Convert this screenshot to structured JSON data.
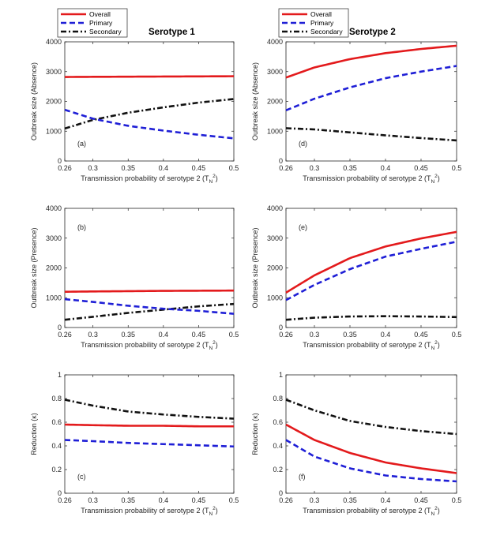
{
  "figure": {
    "column_titles": [
      "Serotype 1",
      "Serotype 2"
    ]
  },
  "chart_data": [
    {
      "panel": "(a)",
      "type": "line",
      "title": "Serotype 1",
      "xlabel": "Transmission probability of serotype 2 (T_N^2)",
      "ylabel": "Outbreak size (Absence)",
      "xlim": [
        0.26,
        0.5
      ],
      "ylim": [
        0,
        4000
      ],
      "xticks": [
        0.26,
        0.3,
        0.35,
        0.4,
        0.45,
        0.5
      ],
      "yticks": [
        0,
        1000,
        2000,
        3000,
        4000
      ],
      "legend": [
        "Overall",
        "Primary",
        "Secondary"
      ],
      "legend_position": "top-left",
      "x": [
        0.26,
        0.3,
        0.35,
        0.4,
        0.45,
        0.5
      ],
      "series": [
        {
          "name": "Overall",
          "values": [
            2820,
            2825,
            2830,
            2835,
            2840,
            2845
          ]
        },
        {
          "name": "Primary",
          "values": [
            1720,
            1420,
            1180,
            1020,
            880,
            760
          ]
        },
        {
          "name": "Secondary",
          "values": [
            1090,
            1380,
            1620,
            1800,
            1960,
            2080
          ]
        }
      ]
    },
    {
      "panel": "(b)",
      "type": "line",
      "title": "",
      "xlabel": "Transmission probability of serotype 2 (T_N^2)",
      "ylabel": "Outbreak size (Presence)",
      "xlim": [
        0.26,
        0.5
      ],
      "ylim": [
        0,
        4000
      ],
      "xticks": [
        0.26,
        0.3,
        0.35,
        0.4,
        0.45,
        0.5
      ],
      "yticks": [
        0,
        1000,
        2000,
        3000,
        4000
      ],
      "x": [
        0.26,
        0.3,
        0.35,
        0.4,
        0.45,
        0.5
      ],
      "series": [
        {
          "name": "Overall",
          "values": [
            1200,
            1210,
            1220,
            1230,
            1235,
            1240
          ]
        },
        {
          "name": "Primary",
          "values": [
            950,
            860,
            730,
            630,
            560,
            460
          ]
        },
        {
          "name": "Secondary",
          "values": [
            260,
            360,
            490,
            600,
            710,
            790
          ]
        }
      ]
    },
    {
      "panel": "(c)",
      "type": "line",
      "title": "",
      "xlabel": "Transmission probability of serotype 2 (T_N^2)",
      "ylabel": "Reduction (κ)",
      "xlim": [
        0.26,
        0.5
      ],
      "ylim": [
        0,
        1
      ],
      "xticks": [
        0.26,
        0.3,
        0.35,
        0.4,
        0.45,
        0.5
      ],
      "yticks": [
        0,
        0.2,
        0.4,
        0.6,
        0.8,
        1
      ],
      "x": [
        0.26,
        0.3,
        0.35,
        0.4,
        0.45,
        0.5
      ],
      "series": [
        {
          "name": "Overall",
          "values": [
            0.58,
            0.575,
            0.57,
            0.57,
            0.565,
            0.565
          ]
        },
        {
          "name": "Primary",
          "values": [
            0.45,
            0.44,
            0.425,
            0.415,
            0.405,
            0.395
          ]
        },
        {
          "name": "Secondary",
          "values": [
            0.79,
            0.74,
            0.69,
            0.665,
            0.645,
            0.63
          ]
        }
      ]
    },
    {
      "panel": "(d)",
      "type": "line",
      "title": "Serotype 2",
      "xlabel": "Transmission probability of serotype 2 (T_N^2)",
      "ylabel": "Outbreak size (Absence)",
      "xlim": [
        0.26,
        0.5
      ],
      "ylim": [
        0,
        4000
      ],
      "xticks": [
        0.26,
        0.3,
        0.35,
        0.4,
        0.45,
        0.5
      ],
      "yticks": [
        0,
        1000,
        2000,
        3000,
        4000
      ],
      "legend": [
        "Overall",
        "Primary",
        "Secondary"
      ],
      "legend_position": "top-left",
      "x": [
        0.26,
        0.3,
        0.35,
        0.4,
        0.45,
        0.5
      ],
      "series": [
        {
          "name": "Overall",
          "values": [
            2800,
            3140,
            3420,
            3620,
            3760,
            3870
          ]
        },
        {
          "name": "Primary",
          "values": [
            1700,
            2090,
            2470,
            2780,
            3000,
            3190
          ]
        },
        {
          "name": "Secondary",
          "values": [
            1100,
            1060,
            960,
            860,
            770,
            690
          ]
        }
      ]
    },
    {
      "panel": "(e)",
      "type": "line",
      "title": "",
      "xlabel": "Transmission probability of serotype 2 (T_N^2)",
      "ylabel": "Outbreak size (Presence)",
      "xlim": [
        0.26,
        0.5
      ],
      "ylim": [
        0,
        4000
      ],
      "xticks": [
        0.26,
        0.3,
        0.35,
        0.4,
        0.45,
        0.5
      ],
      "yticks": [
        0,
        1000,
        2000,
        3000,
        4000
      ],
      "x": [
        0.26,
        0.3,
        0.35,
        0.4,
        0.45,
        0.5
      ],
      "series": [
        {
          "name": "Overall",
          "values": [
            1170,
            1750,
            2330,
            2720,
            2990,
            3210
          ]
        },
        {
          "name": "Primary",
          "values": [
            920,
            1430,
            1960,
            2380,
            2640,
            2880
          ]
        },
        {
          "name": "Secondary",
          "values": [
            260,
            330,
            370,
            380,
            370,
            350
          ]
        }
      ]
    },
    {
      "panel": "(f)",
      "type": "line",
      "title": "",
      "xlabel": "Transmission probability of serotype 2 (T_N^2)",
      "ylabel": "Reduction (κ)",
      "xlim": [
        0.26,
        0.5
      ],
      "ylim": [
        0,
        1
      ],
      "xticks": [
        0.26,
        0.3,
        0.35,
        0.4,
        0.45,
        0.5
      ],
      "yticks": [
        0,
        0.2,
        0.4,
        0.6,
        0.8,
        1
      ],
      "x": [
        0.26,
        0.3,
        0.35,
        0.4,
        0.45,
        0.5
      ],
      "series": [
        {
          "name": "Overall",
          "values": [
            0.58,
            0.45,
            0.34,
            0.26,
            0.21,
            0.17
          ]
        },
        {
          "name": "Primary",
          "values": [
            0.45,
            0.31,
            0.21,
            0.15,
            0.12,
            0.1
          ]
        },
        {
          "name": "Secondary",
          "values": [
            0.79,
            0.7,
            0.61,
            0.56,
            0.525,
            0.5
          ]
        }
      ]
    }
  ],
  "styles": {
    "Overall": {
      "color": "#e31a1c",
      "dash": ""
    },
    "Primary": {
      "color": "#1f1fd6",
      "dash": "7,4"
    },
    "Secondary": {
      "color": "#111111",
      "dash": "7,3,2,3"
    }
  }
}
